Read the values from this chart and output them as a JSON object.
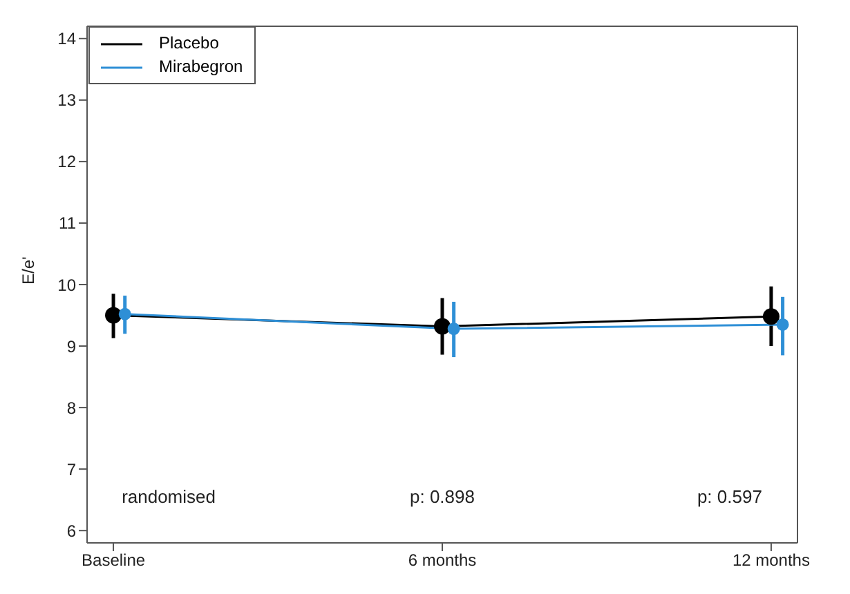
{
  "chart_data": {
    "type": "line",
    "ylabel": "E/e'",
    "categories": [
      "Baseline",
      "6 months",
      "12 months"
    ],
    "ylim": [
      5.8,
      14.2
    ],
    "yticks": [
      6,
      7,
      8,
      9,
      10,
      11,
      12,
      13,
      14
    ],
    "legend": "top left",
    "grid": false,
    "marker": "circle",
    "series": [
      {
        "name": "Placebo",
        "color": "#000000",
        "values": [
          9.5,
          9.32,
          9.48
        ],
        "errors": [
          [
            9.13,
            9.85
          ],
          [
            8.86,
            9.78
          ],
          [
            9.0,
            9.97
          ]
        ]
      },
      {
        "name": "Mirabegron",
        "color": "#2e8fd6",
        "values": [
          9.52,
          9.28,
          9.35
        ],
        "errors": [
          [
            9.2,
            9.82
          ],
          [
            8.82,
            9.72
          ],
          [
            8.85,
            9.8
          ]
        ]
      }
    ],
    "annotations": [
      "randomised",
      "p:  0.898",
      "p:  0.597"
    ]
  }
}
